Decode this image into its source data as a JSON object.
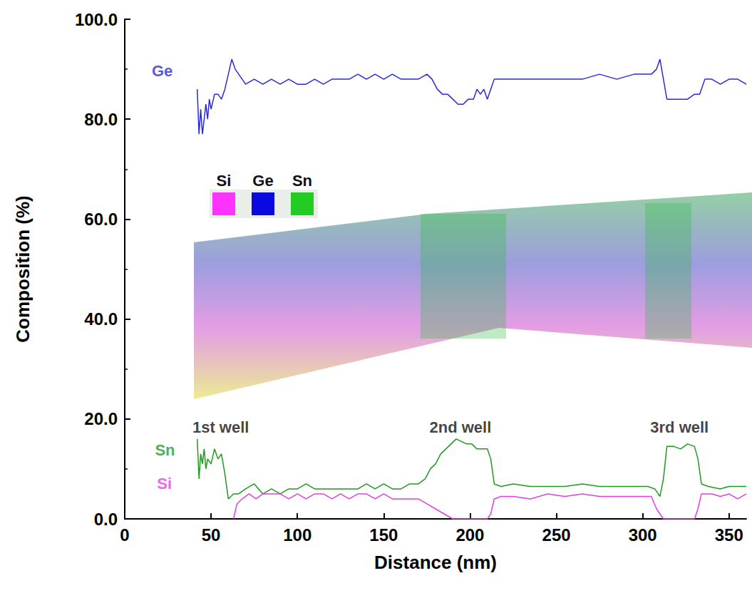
{
  "chart_data": {
    "type": "line",
    "x_label": "Distance (nm)",
    "y_label": "Composition (%)",
    "xlim": [
      0,
      360
    ],
    "xticks": [
      0,
      50,
      100,
      150,
      200,
      250,
      300,
      350
    ],
    "ylim": [
      0,
      100
    ],
    "yticks": [
      {
        "value": 0,
        "label": "0.0"
      },
      {
        "value": 20,
        "label": "20.0"
      },
      {
        "value": 40,
        "label": "40.0"
      },
      {
        "value": 60,
        "label": "60.0"
      },
      {
        "value": 80,
        "label": "80.0"
      },
      {
        "value": 100,
        "label": "100.0"
      }
    ],
    "grid": false,
    "series": [
      {
        "name": "Ge",
        "color": "#2a2ad6",
        "x": [
          42,
          43,
          44,
          45,
          46,
          47,
          48,
          49,
          50,
          52,
          54,
          56,
          58,
          60,
          62,
          64,
          66,
          68,
          70,
          75,
          80,
          85,
          90,
          95,
          100,
          105,
          110,
          115,
          120,
          125,
          130,
          135,
          140,
          145,
          150,
          155,
          160,
          165,
          170,
          175,
          178,
          181,
          184,
          187,
          190,
          193,
          196,
          199,
          202,
          204,
          206,
          208,
          210,
          212,
          214,
          218,
          225,
          235,
          245,
          255,
          265,
          275,
          285,
          295,
          302,
          305,
          308,
          310,
          312,
          314,
          318,
          322,
          326,
          330,
          333,
          336,
          340,
          345,
          350,
          355,
          360
        ],
        "values": [
          86,
          77,
          82,
          77,
          80,
          83,
          80,
          84,
          82,
          85,
          85,
          84,
          86,
          89,
          92,
          90,
          89,
          88,
          87,
          88,
          87,
          88,
          87,
          88,
          87,
          87,
          88,
          87,
          88,
          88,
          88,
          89,
          88,
          89,
          88,
          89,
          88,
          88,
          88,
          89,
          88,
          86,
          85,
          85,
          84,
          83,
          83,
          84,
          84,
          86,
          85,
          86,
          84,
          86,
          88,
          88,
          88,
          88,
          88,
          88,
          88,
          89,
          88,
          89,
          89,
          89,
          90,
          92,
          88,
          84,
          84,
          84,
          84,
          85,
          85,
          88,
          88,
          87,
          88,
          88,
          87
        ]
      },
      {
        "name": "Sn",
        "color": "#1f9a1f",
        "x": [
          42,
          43,
          44,
          45,
          46,
          47,
          48,
          50,
          52,
          54,
          56,
          58,
          60,
          63,
          66,
          70,
          75,
          80,
          85,
          90,
          95,
          100,
          105,
          110,
          115,
          120,
          125,
          130,
          135,
          140,
          145,
          150,
          155,
          160,
          165,
          170,
          174,
          177,
          180,
          183,
          186,
          189,
          192,
          195,
          198,
          201,
          204,
          207,
          210,
          212,
          214,
          218,
          225,
          235,
          245,
          255,
          265,
          275,
          285,
          295,
          303,
          307,
          310,
          312,
          314,
          318,
          322,
          326,
          330,
          332,
          334,
          338,
          345,
          350,
          355,
          360
        ],
        "values": [
          16,
          8,
          13,
          11,
          14,
          10,
          12,
          11,
          14,
          12,
          13,
          9,
          4,
          5,
          5,
          6,
          7,
          5,
          6,
          5,
          6,
          6,
          7,
          6,
          6,
          6,
          6,
          6,
          6,
          7,
          6,
          7,
          6,
          6,
          7,
          7,
          8,
          10,
          11,
          13,
          14,
          15,
          16,
          15.5,
          15,
          15,
          14,
          14,
          14,
          12,
          7,
          6.5,
          7,
          6.5,
          6.5,
          6.5,
          7,
          6.5,
          6.5,
          6.5,
          6.5,
          6,
          4.5,
          8,
          14.5,
          14.5,
          14,
          15,
          14.5,
          12,
          7,
          6.5,
          6,
          6.5,
          6.5,
          6.5
        ]
      },
      {
        "name": "Si",
        "color": "#e23ee2",
        "x": [
          63,
          65,
          68,
          72,
          76,
          80,
          85,
          90,
          95,
          100,
          105,
          110,
          115,
          120,
          125,
          130,
          135,
          140,
          145,
          150,
          155,
          160,
          165,
          170,
          175,
          180,
          185,
          190,
          195,
          200,
          205,
          210,
          212,
          214,
          218,
          225,
          235,
          245,
          255,
          265,
          275,
          285,
          295,
          305,
          308,
          312,
          318,
          322,
          326,
          330,
          332,
          334,
          340,
          345,
          350,
          355,
          360
        ],
        "values": [
          0,
          3,
          4,
          5,
          4,
          5,
          5,
          5,
          4,
          5,
          4,
          5,
          5,
          4,
          5,
          4,
          5,
          5,
          4,
          5,
          4,
          4,
          4,
          4,
          3,
          2,
          1,
          0,
          0,
          0,
          0,
          0,
          1,
          4,
          4.5,
          4.5,
          4,
          5,
          4.5,
          5,
          4.5,
          4.5,
          4.5,
          4.5,
          2,
          0,
          0,
          0,
          0,
          0,
          2,
          5,
          5,
          4.5,
          5,
          4,
          5
        ]
      }
    ],
    "annotations": [
      {
        "text": "Ge",
        "x": 21.7,
        "y": 89.6,
        "color": "#2a2ad6"
      },
      {
        "text": "Sn",
        "x": 23.3,
        "y": 13.7,
        "color": "#1f9a1f"
      },
      {
        "text": "Si",
        "x": 23,
        "y": 7.1,
        "color": "#e23ee2"
      },
      {
        "text": "1st well",
        "x": 55.6,
        "y": 18.3,
        "color": "#111111"
      },
      {
        "text": "2nd well",
        "x": 194.4,
        "y": 18.3,
        "color": "#111111"
      },
      {
        "text": "3rd well",
        "x": 321.3,
        "y": 18.3,
        "color": "#111111"
      }
    ],
    "key": [
      {
        "name": "Si",
        "color": "#ff33ff"
      },
      {
        "name": "Ge",
        "color": "#0a0ae0"
      },
      {
        "name": "Sn",
        "color": "#22cc22"
      }
    ]
  }
}
